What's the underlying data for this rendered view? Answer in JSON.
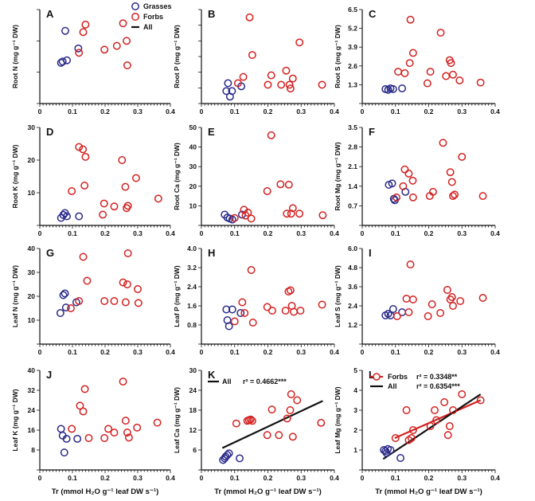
{
  "colors": {
    "grasses": "#2a2a8a",
    "forbs": "#d42020",
    "all": "#111111",
    "fit_forbs": "#d42020"
  },
  "legend": {
    "grasses": "Grasses",
    "forbs": "Forbs",
    "all": "All"
  },
  "x_axis": {
    "label": "Tr (mmol H₂O g⁻¹ leaf DW s⁻¹)",
    "ticks": [
      "0",
      "0.1",
      "0.2",
      "0.3",
      "0.4"
    ],
    "range": [
      0,
      0.4
    ]
  },
  "chart_data": [
    {
      "id": "A",
      "type": "scatter",
      "ylabel": "Root N (mg g⁻¹ DW)",
      "ylim": [
        0,
        15
      ],
      "yticks": [
        0,
        5,
        10,
        15
      ],
      "yticklabels": [],
      "grasses": [
        [
          0.065,
          6.5
        ],
        [
          0.07,
          6.7
        ],
        [
          0.078,
          11.6
        ],
        [
          0.083,
          6.9
        ],
        [
          0.118,
          8.8
        ]
      ],
      "forbs": [
        [
          0.12,
          8.1
        ],
        [
          0.133,
          11.4
        ],
        [
          0.14,
          12.6
        ],
        [
          0.198,
          8.6
        ],
        [
          0.236,
          9.2
        ],
        [
          0.255,
          12.8
        ],
        [
          0.266,
          10.0
        ],
        [
          0.268,
          6.1
        ]
      ]
    },
    {
      "id": "B",
      "type": "scatter",
      "ylabel": "Root P (mg g⁻¹ DW)",
      "ylim": [
        0,
        3.0
      ],
      "yticks": [
        0,
        0.5,
        1.0,
        1.5,
        2.0,
        2.5,
        3.0
      ],
      "yticklabels": [],
      "grasses": [
        [
          0.075,
          0.4
        ],
        [
          0.08,
          0.65
        ],
        [
          0.086,
          0.22
        ],
        [
          0.092,
          0.4
        ],
        [
          0.12,
          0.55
        ]
      ],
      "forbs": [
        [
          0.11,
          0.65
        ],
        [
          0.126,
          0.85
        ],
        [
          0.145,
          2.75
        ],
        [
          0.153,
          1.55
        ],
        [
          0.2,
          0.6
        ],
        [
          0.21,
          0.9
        ],
        [
          0.24,
          0.6
        ],
        [
          0.255,
          1.05
        ],
        [
          0.265,
          0.6
        ],
        [
          0.268,
          0.48
        ],
        [
          0.275,
          0.8
        ],
        [
          0.295,
          1.95
        ],
        [
          0.363,
          0.6
        ]
      ]
    },
    {
      "id": "C",
      "type": "scatter",
      "ylabel": "Root S (mg g⁻¹ DW)",
      "ylim": [
        0,
        6.5
      ],
      "yticks": [
        0,
        1.3,
        2.6,
        3.9,
        5.2,
        6.5
      ],
      "yticklabels": [
        "1.3",
        "2.6",
        "3.9",
        "5.2",
        "6.5"
      ],
      "grasses": [
        [
          0.07,
          1.0
        ],
        [
          0.078,
          0.95
        ],
        [
          0.085,
          1.05
        ],
        [
          0.093,
          1.0
        ],
        [
          0.12,
          1.05
        ]
      ],
      "forbs": [
        [
          0.108,
          2.2
        ],
        [
          0.128,
          2.1
        ],
        [
          0.143,
          2.8
        ],
        [
          0.145,
          5.8
        ],
        [
          0.153,
          3.5
        ],
        [
          0.196,
          1.4
        ],
        [
          0.205,
          2.2
        ],
        [
          0.236,
          4.9
        ],
        [
          0.252,
          1.9
        ],
        [
          0.263,
          3.0
        ],
        [
          0.267,
          2.8
        ],
        [
          0.273,
          2.0
        ],
        [
          0.293,
          1.6
        ],
        [
          0.356,
          1.45
        ]
      ]
    },
    {
      "id": "D",
      "type": "scatter",
      "ylabel": "Root K (mg g⁻¹ DW)",
      "ylim": [
        0,
        30
      ],
      "yticks": [
        0,
        10,
        20,
        30
      ],
      "yticklabels": [
        "10",
        "20",
        "30"
      ],
      "grasses": [
        [
          0.065,
          2.3
        ],
        [
          0.072,
          3.2
        ],
        [
          0.077,
          3.8
        ],
        [
          0.083,
          2.8
        ],
        [
          0.12,
          2.8
        ]
      ],
      "forbs": [
        [
          0.098,
          10.5
        ],
        [
          0.12,
          24.0
        ],
        [
          0.132,
          23.3
        ],
        [
          0.137,
          12.2
        ],
        [
          0.14,
          21.0
        ],
        [
          0.193,
          3.3
        ],
        [
          0.197,
          6.7
        ],
        [
          0.228,
          5.8
        ],
        [
          0.252,
          20.0
        ],
        [
          0.262,
          11.8
        ],
        [
          0.266,
          5.3
        ],
        [
          0.27,
          6.0
        ],
        [
          0.295,
          14.5
        ],
        [
          0.363,
          8.2
        ]
      ]
    },
    {
      "id": "E",
      "type": "scatter",
      "ylabel": "Root Ca (mg g⁻¹ DW)",
      "ylim": [
        0,
        50
      ],
      "yticks": [
        0,
        10,
        20,
        30,
        40,
        50
      ],
      "yticklabels": [
        "10",
        "20",
        "30",
        "40",
        "50"
      ],
      "grasses": [
        [
          0.07,
          5.5
        ],
        [
          0.078,
          4.0
        ],
        [
          0.085,
          3.5
        ],
        [
          0.093,
          3.0
        ],
        [
          0.122,
          5.5
        ]
      ],
      "forbs": [
        [
          0.1,
          3.8
        ],
        [
          0.128,
          8.0
        ],
        [
          0.133,
          5.0
        ],
        [
          0.14,
          6.5
        ],
        [
          0.15,
          3.5
        ],
        [
          0.198,
          17.5
        ],
        [
          0.21,
          46.0
        ],
        [
          0.238,
          21.0
        ],
        [
          0.257,
          6.0
        ],
        [
          0.263,
          20.8
        ],
        [
          0.27,
          6.0
        ],
        [
          0.275,
          8.8
        ],
        [
          0.295,
          6.0
        ],
        [
          0.365,
          5.2
        ]
      ]
    },
    {
      "id": "F",
      "type": "scatter",
      "ylabel": "Root Mg (mg g⁻¹ DW)",
      "ylim": [
        0,
        3.5
      ],
      "yticks": [
        0,
        0.7,
        1.4,
        2.1,
        2.8,
        3.5
      ],
      "yticklabels": [
        "0.7",
        "1.4",
        "2.1",
        "2.8",
        "3.5"
      ],
      "grasses": [
        [
          0.08,
          1.45
        ],
        [
          0.09,
          1.5
        ],
        [
          0.095,
          0.95
        ],
        [
          0.098,
          0.9
        ],
        [
          0.13,
          1.2
        ]
      ],
      "forbs": [
        [
          0.103,
          1.0
        ],
        [
          0.123,
          1.4
        ],
        [
          0.128,
          2.0
        ],
        [
          0.14,
          1.85
        ],
        [
          0.152,
          1.6
        ],
        [
          0.153,
          1.0
        ],
        [
          0.203,
          1.05
        ],
        [
          0.213,
          1.2
        ],
        [
          0.243,
          2.95
        ],
        [
          0.265,
          1.9
        ],
        [
          0.27,
          1.55
        ],
        [
          0.273,
          1.05
        ],
        [
          0.278,
          1.1
        ],
        [
          0.3,
          2.45
        ],
        [
          0.363,
          1.05
        ]
      ]
    },
    {
      "id": "G",
      "type": "scatter",
      "ylabel": "Leaf N (mg g⁻¹ DW)",
      "ylim": [
        0,
        40
      ],
      "yticks": [
        0,
        10,
        20,
        30,
        40
      ],
      "yticklabels": [
        "10",
        "20",
        "30",
        "40"
      ],
      "grasses": [
        [
          0.063,
          13.0
        ],
        [
          0.072,
          20.5
        ],
        [
          0.077,
          21.2
        ],
        [
          0.08,
          15.3
        ],
        [
          0.112,
          17.5
        ]
      ],
      "forbs": [
        [
          0.095,
          15.0
        ],
        [
          0.12,
          18.0
        ],
        [
          0.133,
          36.5
        ],
        [
          0.145,
          26.5
        ],
        [
          0.198,
          18.0
        ],
        [
          0.228,
          18.0
        ],
        [
          0.255,
          25.8
        ],
        [
          0.263,
          17.5
        ],
        [
          0.268,
          25.0
        ],
        [
          0.27,
          38.0
        ],
        [
          0.3,
          23.0
        ],
        [
          0.302,
          17.2
        ]
      ]
    },
    {
      "id": "H",
      "type": "scatter",
      "ylabel": "Leaf P (mg g⁻¹ DW)",
      "ylim": [
        0,
        4.0
      ],
      "yticks": [
        0,
        0.8,
        1.6,
        2.4,
        3.2,
        4.0
      ],
      "yticklabels": [
        "0.8",
        "1.6",
        "2.4",
        "3.2",
        "4.0"
      ],
      "grasses": [
        [
          0.075,
          1.45
        ],
        [
          0.078,
          1.0
        ],
        [
          0.083,
          0.75
        ],
        [
          0.093,
          1.45
        ],
        [
          0.118,
          1.3
        ]
      ],
      "forbs": [
        [
          0.1,
          0.95
        ],
        [
          0.123,
          1.75
        ],
        [
          0.13,
          1.3
        ],
        [
          0.15,
          3.1
        ],
        [
          0.155,
          0.9
        ],
        [
          0.198,
          1.55
        ],
        [
          0.213,
          1.4
        ],
        [
          0.253,
          1.4
        ],
        [
          0.262,
          2.2
        ],
        [
          0.268,
          2.25
        ],
        [
          0.272,
          1.6
        ],
        [
          0.278,
          1.35
        ],
        [
          0.298,
          1.4
        ],
        [
          0.363,
          1.65
        ]
      ]
    },
    {
      "id": "I",
      "type": "scatter",
      "ylabel": "Leaf S (mg g⁻¹ DW)",
      "ylim": [
        0,
        6.0
      ],
      "yticks": [
        0,
        1.2,
        2.4,
        3.6,
        4.8,
        6.0
      ],
      "yticklabels": [
        "1.2",
        "2.4",
        "3.6",
        "4.8",
        "6.0"
      ],
      "grasses": [
        [
          0.07,
          1.8
        ],
        [
          0.078,
          1.9
        ],
        [
          0.085,
          1.8
        ],
        [
          0.093,
          2.2
        ],
        [
          0.12,
          2.0
        ]
      ],
      "forbs": [
        [
          0.105,
          1.75
        ],
        [
          0.133,
          2.85
        ],
        [
          0.14,
          2.0
        ],
        [
          0.145,
          5.0
        ],
        [
          0.153,
          2.8
        ],
        [
          0.198,
          1.75
        ],
        [
          0.21,
          2.5
        ],
        [
          0.235,
          1.95
        ],
        [
          0.256,
          3.4
        ],
        [
          0.265,
          2.8
        ],
        [
          0.27,
          2.95
        ],
        [
          0.273,
          2.4
        ],
        [
          0.295,
          2.7
        ],
        [
          0.363,
          2.9
        ]
      ]
    },
    {
      "id": "J",
      "type": "scatter",
      "ylabel": "Leaf K (mg g⁻¹ DW)",
      "ylim": [
        0,
        40
      ],
      "yticks": [
        0,
        8,
        16,
        24,
        32,
        40
      ],
      "yticklabels": [
        "8",
        "16",
        "24",
        "32",
        "40"
      ],
      "grasses": [
        [
          0.065,
          16.5
        ],
        [
          0.07,
          13.8
        ],
        [
          0.075,
          7.0
        ],
        [
          0.082,
          12.5
        ],
        [
          0.115,
          12.5
        ]
      ],
      "forbs": [
        [
          0.098,
          16.5
        ],
        [
          0.123,
          25.8
        ],
        [
          0.133,
          23.5
        ],
        [
          0.138,
          32.5
        ],
        [
          0.15,
          12.8
        ],
        [
          0.198,
          12.8
        ],
        [
          0.21,
          16.5
        ],
        [
          0.228,
          15.0
        ],
        [
          0.255,
          35.5
        ],
        [
          0.263,
          19.8
        ],
        [
          0.268,
          15.0
        ],
        [
          0.273,
          13.0
        ],
        [
          0.298,
          17.0
        ],
        [
          0.36,
          19.0
        ]
      ]
    },
    {
      "id": "K",
      "type": "scatter",
      "ylabel": "Leaf Ca (mg g⁻¹ DW)",
      "ylim": [
        0,
        30
      ],
      "yticks": [
        0,
        6,
        12,
        18,
        24,
        30
      ],
      "yticklabels": [
        "6",
        "12",
        "18",
        "24",
        "30"
      ],
      "grasses": [
        [
          0.065,
          3.0
        ],
        [
          0.07,
          3.5
        ],
        [
          0.073,
          4.0
        ],
        [
          0.078,
          4.5
        ],
        [
          0.083,
          5.0
        ],
        [
          0.115,
          3.5
        ]
      ],
      "forbs": [
        [
          0.105,
          14.0
        ],
        [
          0.138,
          14.8
        ],
        [
          0.143,
          15.0
        ],
        [
          0.148,
          15.2
        ],
        [
          0.153,
          14.8
        ],
        [
          0.198,
          10.5
        ],
        [
          0.212,
          18.2
        ],
        [
          0.233,
          10.5
        ],
        [
          0.258,
          15.5
        ],
        [
          0.267,
          18.0
        ],
        [
          0.27,
          22.8
        ],
        [
          0.275,
          10.0
        ],
        [
          0.288,
          21.0
        ],
        [
          0.36,
          14.2
        ]
      ],
      "fits": [
        {
          "group": "all",
          "label": "All",
          "r2_text": "r² = 0.4662***",
          "line": [
            [
              0.063,
              6.6
            ],
            [
              0.365,
              20.8
            ]
          ]
        }
      ]
    },
    {
      "id": "L",
      "type": "scatter",
      "ylabel": "Leaf Mg (mg g⁻¹ DW)",
      "ylim": [
        0,
        5.0
      ],
      "yticks": [
        0,
        1,
        2,
        3,
        4,
        5
      ],
      "yticklabels": [
        "1",
        "2",
        "3",
        "4",
        "5"
      ],
      "grasses": [
        [
          0.065,
          1.0
        ],
        [
          0.07,
          0.95
        ],
        [
          0.073,
          0.85
        ],
        [
          0.077,
          1.05
        ],
        [
          0.085,
          1.0
        ],
        [
          0.115,
          0.6
        ]
      ],
      "forbs": [
        [
          0.1,
          1.6
        ],
        [
          0.133,
          3.0
        ],
        [
          0.14,
          1.5
        ],
        [
          0.148,
          1.6
        ],
        [
          0.153,
          2.0
        ],
        [
          0.205,
          2.2
        ],
        [
          0.218,
          3.0
        ],
        [
          0.223,
          2.5
        ],
        [
          0.247,
          3.4
        ],
        [
          0.258,
          1.75
        ],
        [
          0.263,
          2.2
        ],
        [
          0.273,
          3.0
        ],
        [
          0.3,
          3.8
        ],
        [
          0.356,
          3.5
        ]
      ],
      "fits": [
        {
          "group": "forbs",
          "label": "Forbs",
          "r2_text": "r² = 0.3348**",
          "line": [
            [
              0.098,
              1.6
            ],
            [
              0.356,
              3.5
            ]
          ]
        },
        {
          "group": "all",
          "label": "All",
          "r2_text": "r² = 0.6354***",
          "line": [
            [
              0.063,
              0.55
            ],
            [
              0.356,
              3.8
            ]
          ]
        }
      ]
    }
  ]
}
